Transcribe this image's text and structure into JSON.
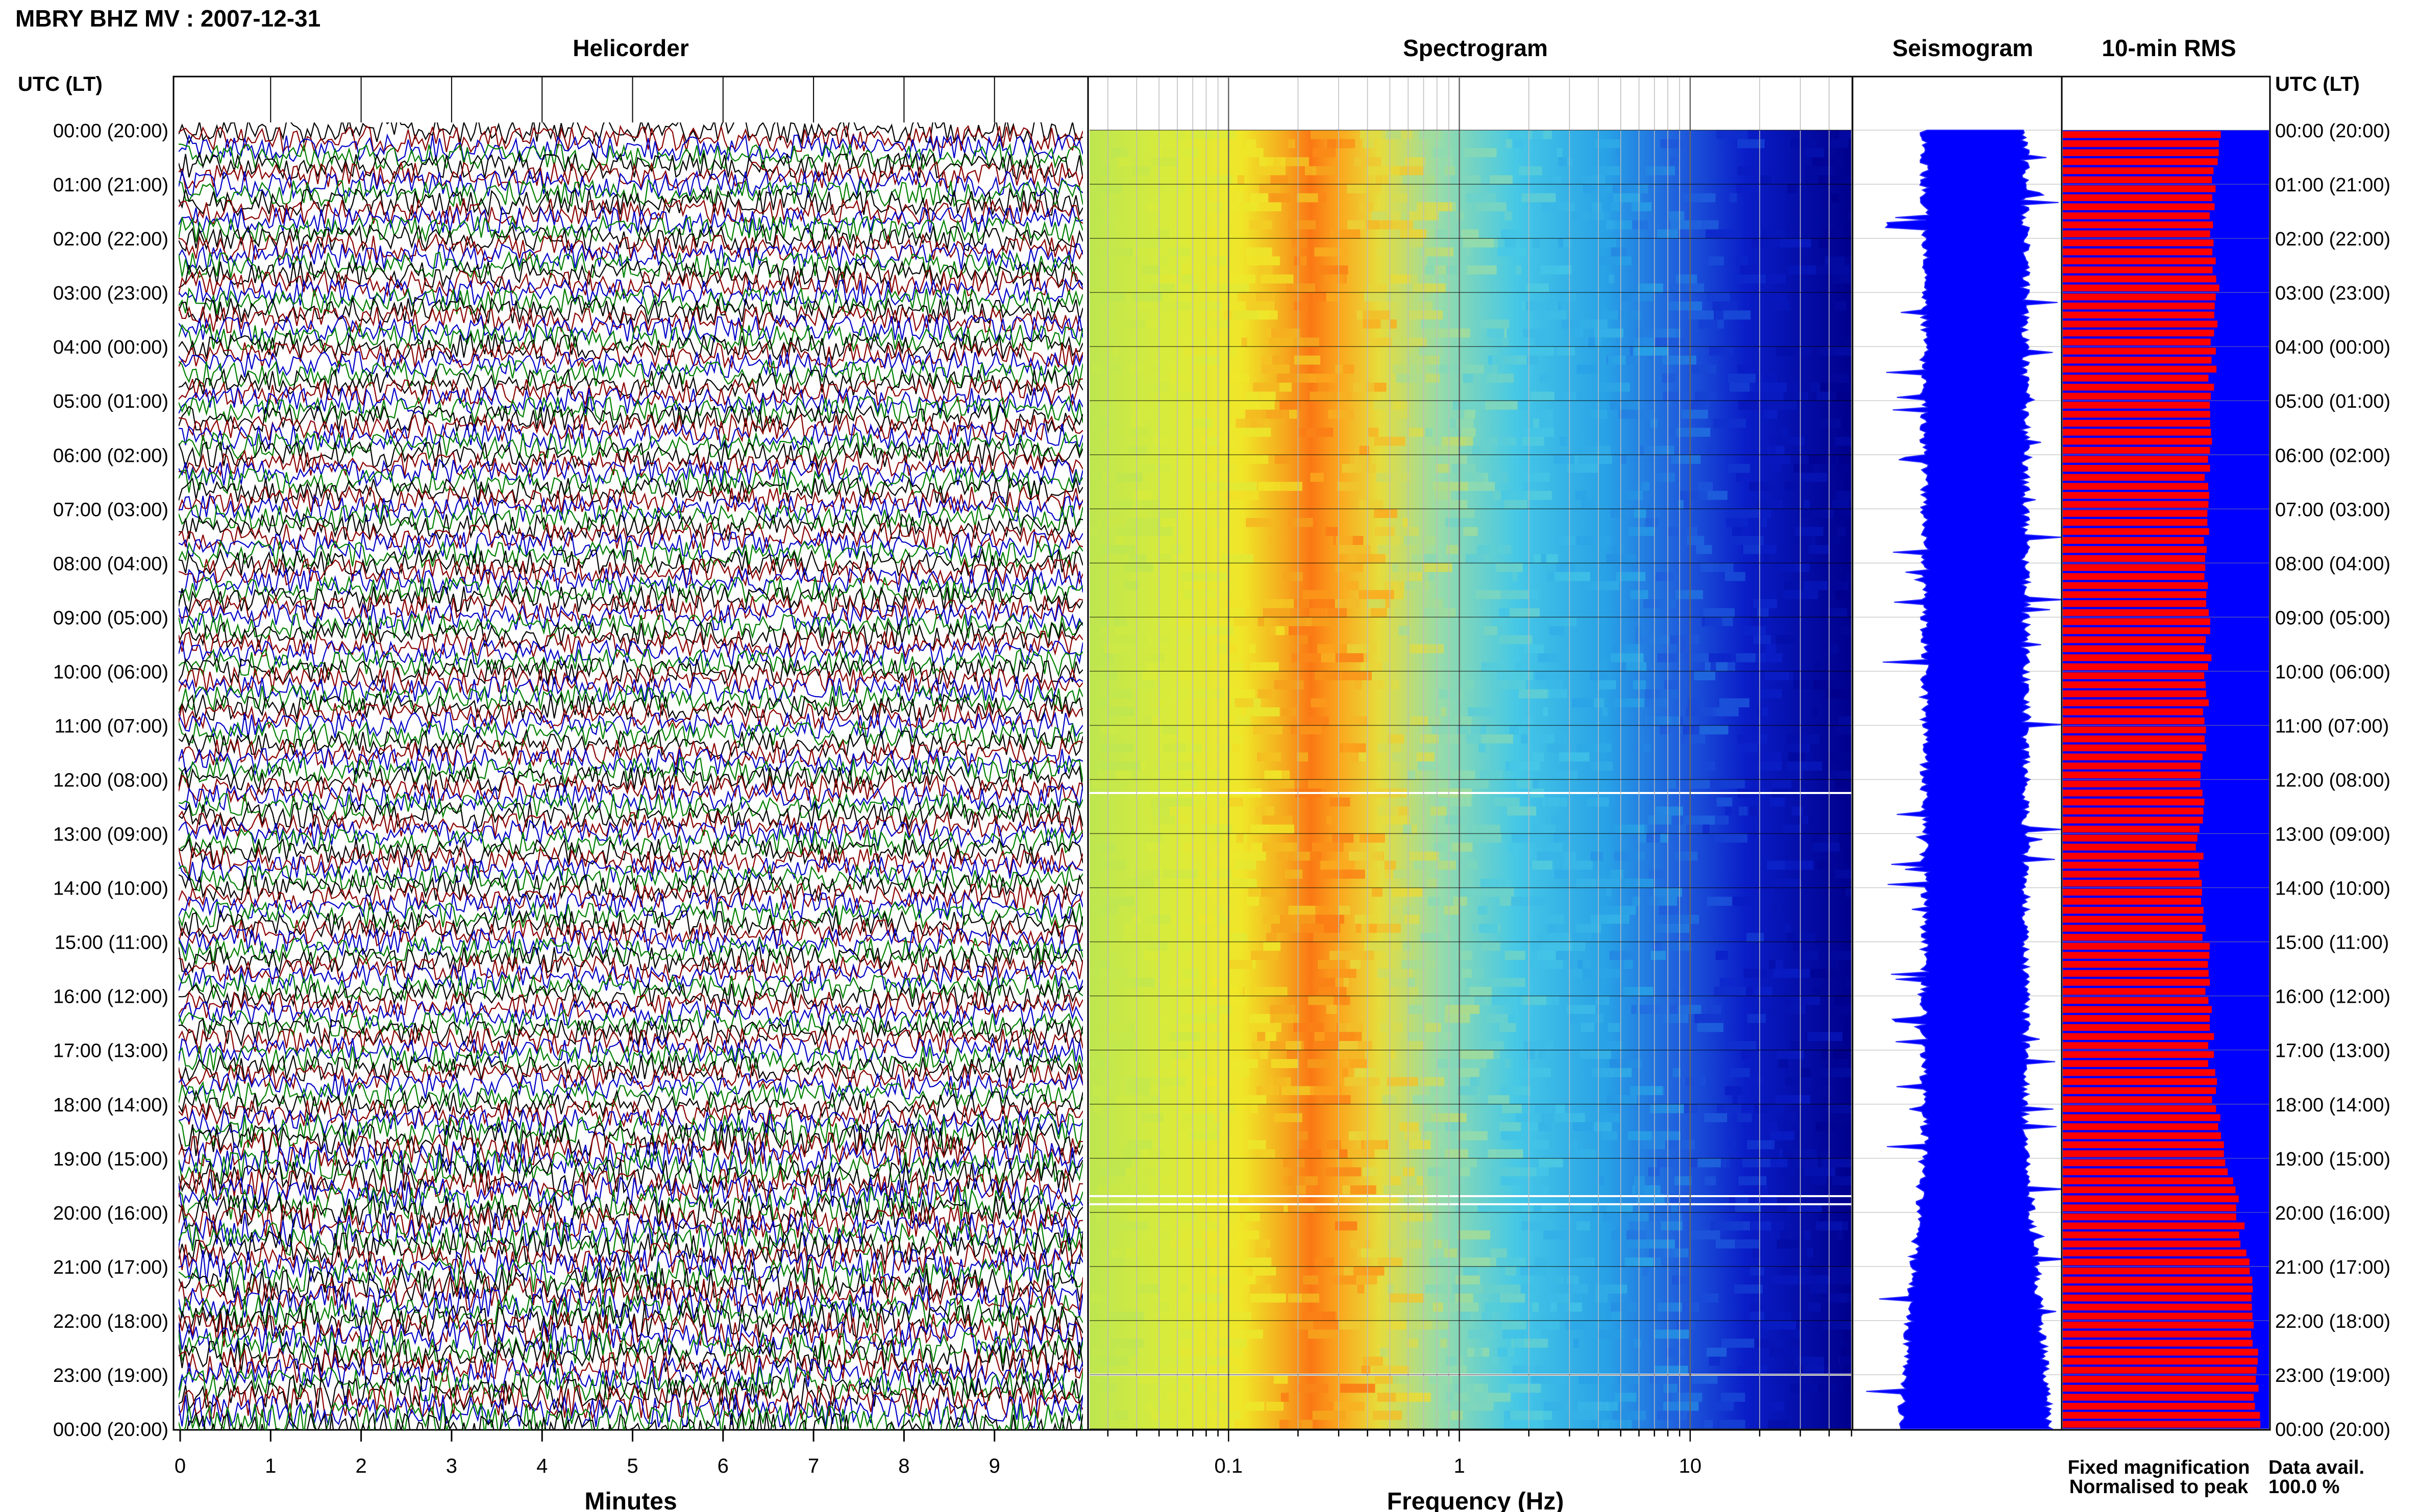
{
  "header": {
    "title": "MBRY BHZ MV : 2007-12-31",
    "utc_label_left": "UTC (LT)",
    "utc_label_right": "UTC (LT)"
  },
  "panels": {
    "helicorder_title": "Helicorder",
    "spectrogram_title": "Spectrogram",
    "seismogram_title": "Seismogram",
    "rms_title": "10-min RMS"
  },
  "time_labels": [
    "00:00 (20:00)",
    "01:00 (21:00)",
    "02:00 (22:00)",
    "03:00 (23:00)",
    "04:00 (00:00)",
    "05:00 (01:00)",
    "06:00 (02:00)",
    "07:00 (03:00)",
    "08:00 (04:00)",
    "09:00 (05:00)",
    "10:00 (06:00)",
    "11:00 (07:00)",
    "12:00 (08:00)",
    "13:00 (09:00)",
    "14:00 (10:00)",
    "15:00 (11:00)",
    "16:00 (12:00)",
    "17:00 (13:00)",
    "18:00 (14:00)",
    "19:00 (15:00)",
    "20:00 (16:00)",
    "21:00 (17:00)",
    "22:00 (18:00)",
    "23:00 (19:00)",
    "00:00 (20:00)"
  ],
  "helicorder": {
    "xlabel": "Minutes",
    "x_ticks": [
      "0",
      "1",
      "2",
      "3",
      "4",
      "5",
      "6",
      "7",
      "8",
      "9"
    ],
    "xlim": [
      0,
      10
    ],
    "trace_colors": [
      "#000000",
      "#8b0000",
      "#0000c8",
      "#008000"
    ]
  },
  "spectrogram": {
    "xlabel": "Frequency (Hz)",
    "x_ticks": [
      "0.1",
      "1",
      "10"
    ],
    "x_scale": "log",
    "xlim": [
      0.025,
      50
    ]
  },
  "legend": {
    "fixed_label": "Fixed magnification",
    "fixed_color": "#1010ff",
    "normalised_label": "Normalised to peak",
    "normalised_color": "#ee1111",
    "avail_label": "Data avail.",
    "avail_value": "100.0 %"
  },
  "chart_data": {
    "type": "bar",
    "title": "10-min RMS",
    "xlabel": "",
    "ylabel": "UTC (LT)",
    "y_range": [
      "00:00 (20:00)",
      "00:00 (20:00)"
    ],
    "xlim": [
      0,
      1
    ],
    "grid": true,
    "hourly_normalised_rms_fraction": [
      0.76,
      0.73,
      0.73,
      0.76,
      0.73,
      0.72,
      0.71,
      0.7,
      0.7,
      0.71,
      0.7,
      0.68,
      0.67,
      0.66,
      0.68,
      0.7,
      0.71,
      0.72,
      0.74,
      0.8,
      0.86,
      0.9,
      0.92,
      0.94
    ],
    "colors": {
      "fixed": "#0000ff",
      "normalised": "#ff0000"
    }
  }
}
